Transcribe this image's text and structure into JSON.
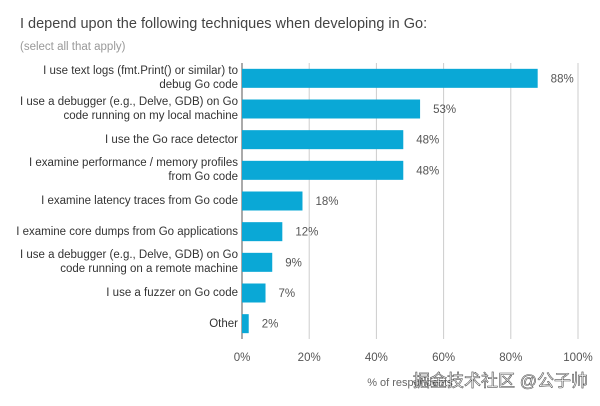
{
  "chart_data": {
    "type": "bar",
    "orientation": "horizontal",
    "title": "I depend upon the following techniques when developing in Go:",
    "subtitle": "(select all that apply)",
    "categories": [
      "I use text logs (fmt.Print() or similar) to debug Go code",
      "I use a debugger (e.g., Delve, GDB) on Go code running on my local machine",
      "I use the Go race detector",
      "I examine performance / memory profiles from Go code",
      "I examine latency traces from Go code",
      "I examine core dumps from Go applications",
      "I use a debugger (e.g., Delve, GDB) on Go code running on a remote machine",
      "I use a fuzzer on Go code",
      "Other"
    ],
    "values": [
      88,
      53,
      48,
      48,
      18,
      12,
      9,
      7,
      2
    ],
    "value_labels": [
      "88%",
      "53%",
      "48%",
      "48%",
      "18%",
      "12%",
      "9%",
      "7%",
      "2%"
    ],
    "color": "#0aa8d6",
    "xlim": [
      0,
      100
    ],
    "xticks": [
      {
        "value": 0,
        "label": "0%"
      },
      {
        "value": 20,
        "label": "20%"
      },
      {
        "value": 40,
        "label": "40%"
      },
      {
        "value": 60,
        "label": "60%"
      },
      {
        "value": 80,
        "label": "80%"
      },
      {
        "value": 100,
        "label": "100%"
      }
    ],
    "x_label": "% of respondents",
    "grid": true,
    "watermark": "掘金技术社区 @公子帅"
  }
}
